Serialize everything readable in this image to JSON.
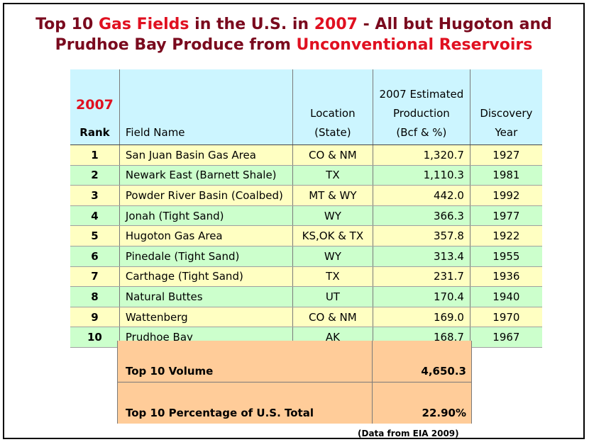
{
  "title": {
    "line1": {
      "p1": "Top 10 ",
      "h1": "Gas Fields",
      "p2": " in the U.S. in ",
      "h2": "2007",
      "p3": " - All but Hugoton and"
    },
    "line2": {
      "p1": "Prudhoe Bay Produce from ",
      "h1": "Unconventional Reservoirs"
    }
  },
  "header": {
    "year": "2007",
    "rank": "Rank",
    "field": "Field Name",
    "location": [
      "Location",
      "(State)"
    ],
    "production": [
      "2007 Estimated",
      "Production",
      "(Bcf & %)"
    ],
    "discovery": [
      "Discovery",
      "Year"
    ]
  },
  "rows": [
    {
      "rank": "1",
      "field": "San Juan Basin Gas Area",
      "location": "CO & NM",
      "production": "1,320.7",
      "year": "1927"
    },
    {
      "rank": "2",
      "field": "Newark East (Barnett Shale)",
      "location": "TX",
      "production": "1,110.3",
      "year": "1981"
    },
    {
      "rank": "3",
      "field": "Powder River Basin (Coalbed)",
      "location": "MT & WY",
      "production": "442.0",
      "year": "1992"
    },
    {
      "rank": "4",
      "field": "Jonah (Tight Sand)",
      "location": "WY",
      "production": "366.3",
      "year": "1977"
    },
    {
      "rank": "5",
      "field": "Hugoton Gas Area",
      "location": "KS,OK & TX",
      "production": "357.8",
      "year": "1922"
    },
    {
      "rank": "6",
      "field": "Pinedale (Tight Sand)",
      "location": "WY",
      "production": "313.4",
      "year": "1955"
    },
    {
      "rank": "7",
      "field": "Carthage (Tight Sand)",
      "location": "TX",
      "production": "231.7",
      "year": "1936"
    },
    {
      "rank": "8",
      "field": "Natural Buttes",
      "location": "UT",
      "production": "170.4",
      "year": "1940"
    },
    {
      "rank": "9",
      "field": "Wattenberg",
      "location": "CO & NM",
      "production": "169.0",
      "year": "1970"
    },
    {
      "rank": "10",
      "field": "Prudhoe Bay",
      "location": "AK",
      "production": "168.7",
      "year": "1967"
    }
  ],
  "summary": {
    "volume_label": "Top 10 Volume",
    "volume_value": "4,650.3",
    "percent_label": "Top 10 Percentage of U.S. Total",
    "percent_value": "22.90%"
  },
  "source": "(Data from EIA 2009)",
  "colors": {
    "title_dark": "#7a0a1e",
    "title_highlight": "#e01020",
    "header_bg": "#ccf5ff",
    "row_odd_bg": "#ffffc2",
    "row_even_bg": "#ccffcc",
    "summary_bg": "#ffcc99"
  }
}
